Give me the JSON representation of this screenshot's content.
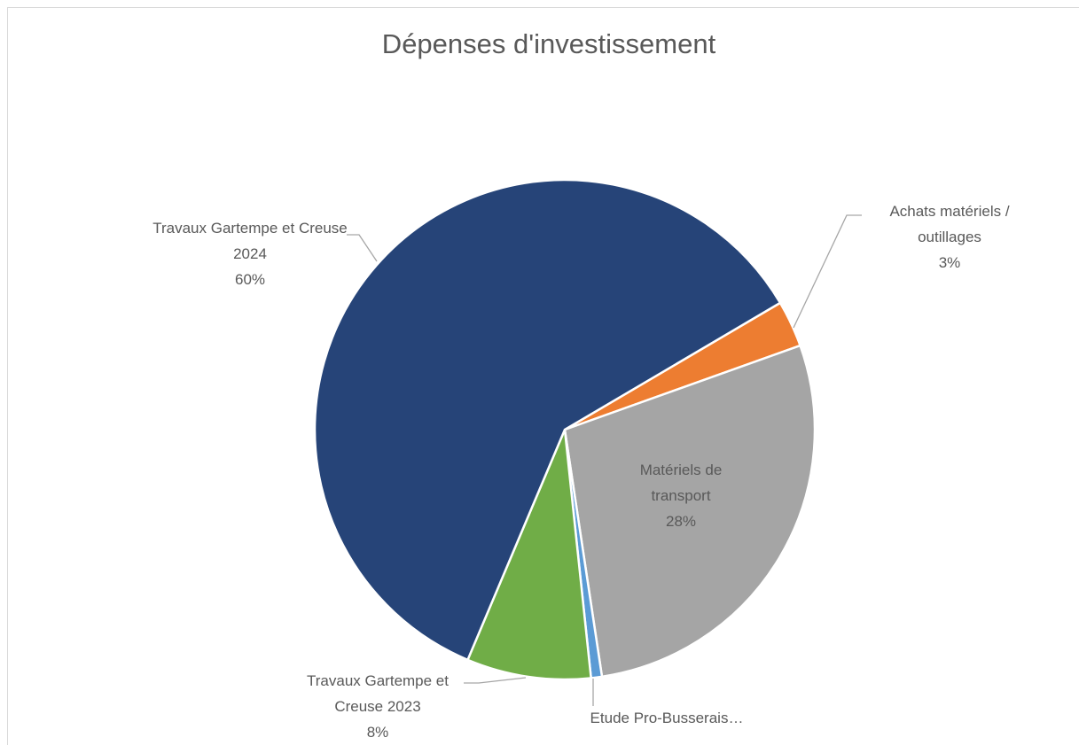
{
  "chart_data": {
    "type": "pie",
    "title": "Dépenses d'investissement",
    "categories": [
      "Achats matériels / outillages",
      "Matériels de transport",
      "Etude Pro-Busserais…",
      "Travaux Gartempe et Creuse 2023",
      "Travaux Gartempe et Creuse 2024"
    ],
    "values": [
      3,
      28,
      0.7,
      8,
      60
    ],
    "value_labels": [
      "3%",
      "28%",
      null,
      "8%",
      "60%"
    ],
    "colors": [
      "#ED7D31",
      "#A5A5A5",
      "#5B9BD5",
      "#70AD47",
      "#264478"
    ]
  }
}
